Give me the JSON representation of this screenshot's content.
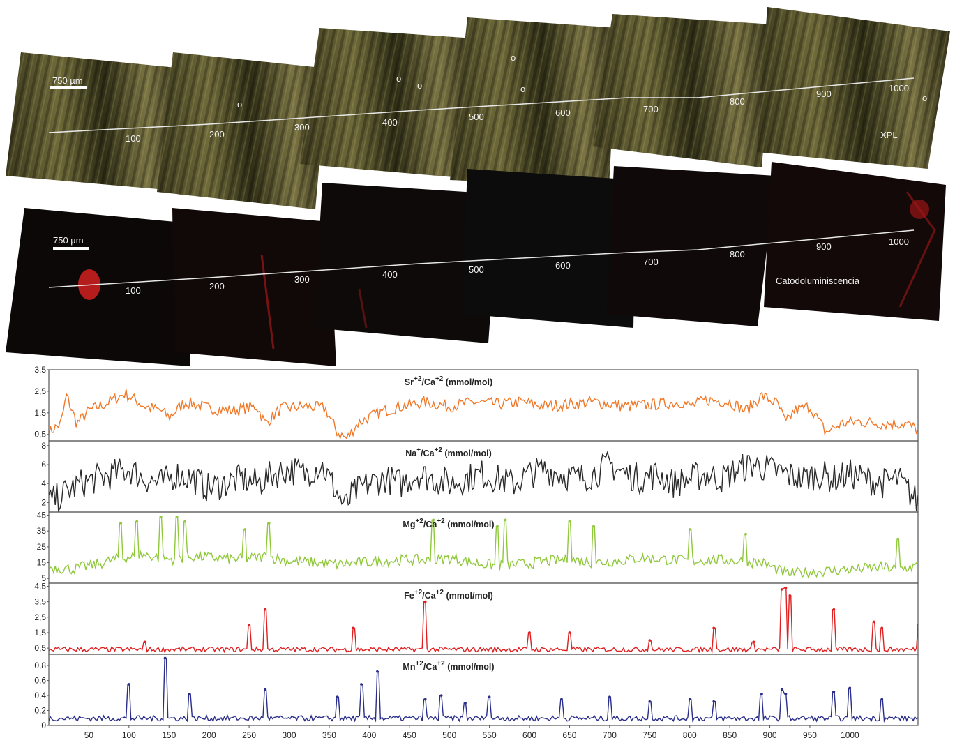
{
  "mosaic": {
    "scale_label": "750 µm",
    "xpl_label": "XPL",
    "cl_label": "Catodoluminiscencia",
    "distance_labels": [
      "100",
      "200",
      "300",
      "400",
      "500",
      "600",
      "700",
      "800",
      "900",
      "1000"
    ],
    "sample_marks": [
      "o",
      "o",
      "o",
      "o",
      "o",
      "o"
    ]
  },
  "chart_data": {
    "type": "line",
    "x_ticks": [
      50,
      100,
      150,
      200,
      250,
      300,
      350,
      400,
      450,
      500,
      550,
      600,
      650,
      700,
      750,
      800,
      850,
      900,
      950,
      1000
    ],
    "xlim": [
      0,
      1085
    ],
    "panels": [
      {
        "id": "sr",
        "title_base": "Sr",
        "title_base_sup": "+2",
        "title_rest": "/Ca",
        "title_rest_sup": "+2",
        "title_unit": " (mmol/mol)",
        "color": "#f07828",
        "ylim": [
          0.2,
          3.5
        ],
        "y_ticks": [
          "3,5",
          "2,5",
          "1,5",
          "0,5"
        ],
        "y_tick_values": [
          3.5,
          2.5,
          1.5,
          0.5
        ],
        "series": {
          "x": [
            0,
            15,
            22,
            35,
            50,
            70,
            95,
            120,
            140,
            150,
            170,
            200,
            230,
            260,
            270,
            290,
            320,
            345,
            360,
            372,
            385,
            400,
            420,
            440,
            470,
            500,
            530,
            560,
            590,
            620,
            650,
            680,
            720,
            760,
            790,
            800,
            820,
            850,
            870,
            890,
            910,
            920,
            930,
            950,
            970,
            990,
            1010,
            1040,
            1070,
            1085
          ],
          "y": [
            0.6,
            1.0,
            2.3,
            1.0,
            1.6,
            1.9,
            2.4,
            1.8,
            1.6,
            1.3,
            2.0,
            1.7,
            1.6,
            1.8,
            1.0,
            1.7,
            1.8,
            1.7,
            0.6,
            0.3,
            1.0,
            1.3,
            1.6,
            1.8,
            2.0,
            1.8,
            2.0,
            1.9,
            2.0,
            1.8,
            1.9,
            2.0,
            1.8,
            1.9,
            2.0,
            1.8,
            2.1,
            2.0,
            1.6,
            2.3,
            1.9,
            1.0,
            1.6,
            1.8,
            0.6,
            1.0,
            1.1,
            1.0,
            1.0,
            0.7
          ]
        }
      },
      {
        "id": "na",
        "title_base": "Na",
        "title_base_sup": "+",
        "title_rest": "/Ca",
        "title_rest_sup": "+2",
        "title_unit": " (mmol/mol)",
        "color": "#2a2a2a",
        "ylim": [
          1,
          8.5
        ],
        "y_ticks": [
          "8",
          "6",
          "4",
          "2"
        ],
        "y_tick_values": [
          8,
          6,
          4,
          2
        ],
        "series": {
          "x": [
            0,
            20,
            40,
            60,
            80,
            100,
            120,
            140,
            160,
            180,
            200,
            220,
            240,
            260,
            280,
            300,
            320,
            340,
            360,
            370,
            380,
            400,
            420,
            440,
            460,
            480,
            500,
            520,
            540,
            560,
            580,
            600,
            620,
            640,
            660,
            680,
            700,
            720,
            740,
            760,
            780,
            800,
            820,
            840,
            860,
            880,
            900,
            920,
            940,
            960,
            980,
            1000,
            1020,
            1040,
            1060,
            1085
          ],
          "y": [
            2,
            3,
            4,
            4.5,
            5,
            5.5,
            4.5,
            4,
            5,
            4.5,
            3.5,
            4,
            4.5,
            4,
            5,
            5.5,
            5,
            6,
            3,
            1.5,
            3,
            4,
            4.5,
            4,
            5,
            4.5,
            4,
            4.5,
            5,
            4.5,
            4,
            5,
            5.5,
            5,
            4.5,
            5,
            6,
            5,
            4.5,
            5,
            4,
            4.5,
            5,
            4.5,
            5.5,
            6,
            5.5,
            5,
            4.5,
            5,
            4.5,
            5,
            4.5,
            4,
            4.5,
            2
          ]
        }
      },
      {
        "id": "mg",
        "title_base": "Mg",
        "title_base_sup": "+2",
        "title_rest": "/Ca",
        "title_rest_sup": "+2",
        "title_unit": " (mmol/mol)",
        "color": "#90c83c",
        "ylim": [
          2,
          47
        ],
        "y_ticks": [
          "45",
          "35",
          "25",
          "15",
          "5"
        ],
        "y_tick_values": [
          45,
          35,
          25,
          15,
          5
        ],
        "series": {
          "x": [
            0,
            30,
            60,
            90,
            120,
            150,
            180,
            210,
            240,
            270,
            300,
            330,
            360,
            390,
            420,
            450,
            480,
            500,
            530,
            560,
            590,
            620,
            650,
            680,
            710,
            740,
            770,
            800,
            830,
            860,
            890,
            920,
            950,
            980,
            1010,
            1040,
            1060,
            1085
          ],
          "y": [
            12,
            11,
            14,
            18,
            20,
            17,
            19,
            18,
            17,
            19,
            16,
            15,
            14,
            15,
            16,
            17,
            16,
            18,
            15,
            13,
            14,
            16,
            17,
            15,
            16,
            18,
            17,
            16,
            17,
            16,
            15,
            8,
            9,
            10,
            11,
            12,
            11,
            13
          ]
        },
        "spikes": [
          [
            90,
            40
          ],
          [
            110,
            41
          ],
          [
            140,
            44
          ],
          [
            160,
            44
          ],
          [
            170,
            41
          ],
          [
            245,
            36
          ],
          [
            275,
            40
          ],
          [
            480,
            42
          ],
          [
            560,
            38
          ],
          [
            570,
            42
          ],
          [
            650,
            41
          ],
          [
            680,
            38
          ],
          [
            800,
            36
          ],
          [
            870,
            33
          ],
          [
            1060,
            30
          ]
        ]
      },
      {
        "id": "fe",
        "title_base": "Fe",
        "title_base_sup": "+2",
        "title_rest": "/Ca",
        "title_rest_sup": "+2",
        "title_unit": " (mmol/mol)",
        "color": "#e02020",
        "ylim": [
          0.1,
          4.7
        ],
        "y_ticks": [
          "4,5",
          "3,5",
          "2,5",
          "1,5",
          "0,5"
        ],
        "y_tick_values": [
          4.5,
          3.5,
          2.5,
          1.5,
          0.5
        ],
        "baseline": 0.35,
        "spikes": [
          [
            120,
            0.9
          ],
          [
            250,
            2.0
          ],
          [
            270,
            3.0
          ],
          [
            380,
            1.8
          ],
          [
            470,
            3.5
          ],
          [
            600,
            1.5
          ],
          [
            650,
            1.5
          ],
          [
            750,
            1.0
          ],
          [
            830,
            1.8
          ],
          [
            880,
            0.9
          ],
          [
            915,
            4.3
          ],
          [
            920,
            4.4
          ],
          [
            925,
            3.9
          ],
          [
            980,
            3.0
          ],
          [
            1030,
            2.2
          ],
          [
            1040,
            1.8
          ],
          [
            1085,
            2.0
          ]
        ]
      },
      {
        "id": "mn",
        "title_base": "Mn",
        "title_base_sup": "+2",
        "title_rest": "/Ca",
        "title_rest_sup": "+2",
        "title_unit": " (mmol/mol)",
        "color": "#2a2e8a",
        "ylim": [
          0,
          0.95
        ],
        "y_ticks": [
          "0,8",
          "0,6",
          "0,4",
          "0,2",
          "0"
        ],
        "y_tick_values": [
          0.8,
          0.6,
          0.4,
          0.2,
          0
        ],
        "baseline": 0.08,
        "spikes": [
          [
            100,
            0.55
          ],
          [
            145,
            0.9
          ],
          [
            175,
            0.42
          ],
          [
            270,
            0.48
          ],
          [
            360,
            0.38
          ],
          [
            390,
            0.55
          ],
          [
            410,
            0.72
          ],
          [
            470,
            0.35
          ],
          [
            490,
            0.4
          ],
          [
            520,
            0.3
          ],
          [
            550,
            0.38
          ],
          [
            640,
            0.35
          ],
          [
            700,
            0.38
          ],
          [
            750,
            0.32
          ],
          [
            800,
            0.35
          ],
          [
            830,
            0.32
          ],
          [
            890,
            0.42
          ],
          [
            915,
            0.48
          ],
          [
            920,
            0.42
          ],
          [
            980,
            0.45
          ],
          [
            1000,
            0.5
          ],
          [
            1040,
            0.35
          ]
        ]
      }
    ]
  }
}
